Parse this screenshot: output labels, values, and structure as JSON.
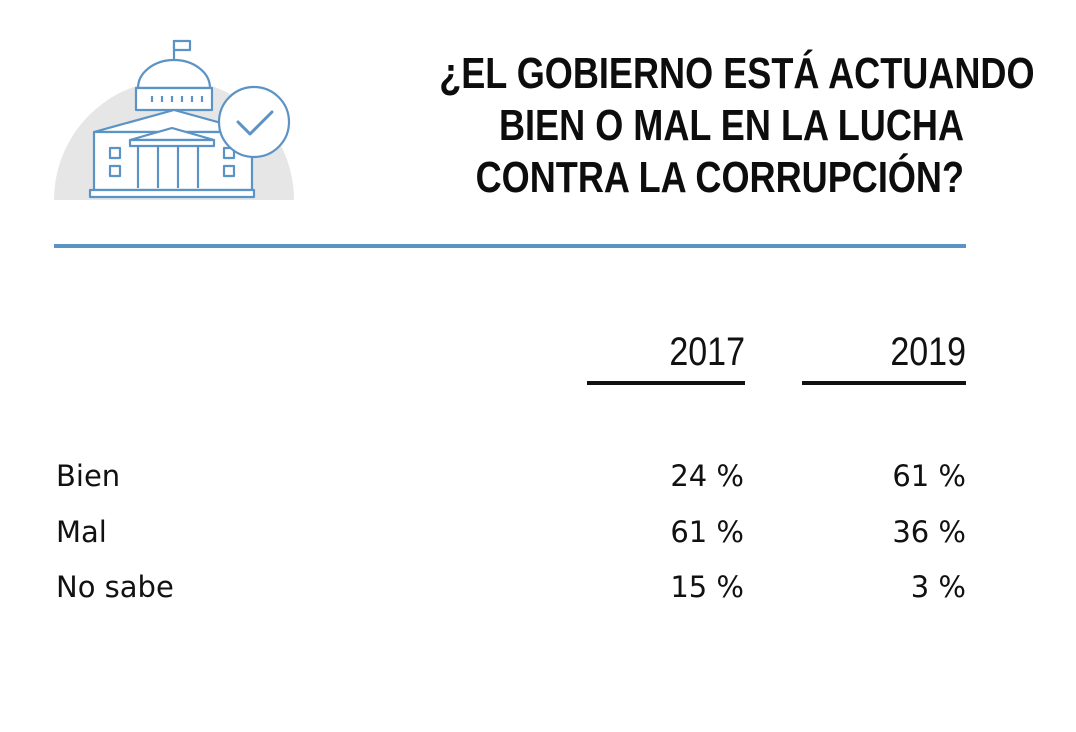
{
  "title_lines": [
    "¿EL GOBIERNO ESTÁ ACTUANDO",
    "BIEN O MAL EN LA LUCHA",
    "CONTRA LA CORRUPCIÓN?"
  ],
  "icon": "government-building-check-icon",
  "colors": {
    "accent": "#5b93c4",
    "icon_background": "#e6e6e6",
    "text": "#111111"
  },
  "chart_data": {
    "type": "table",
    "title": "¿EL GOBIERNO ESTÁ ACTUANDO BIEN O MAL EN LA LUCHA CONTRA LA CORRUPCIÓN?",
    "columns": [
      "2017",
      "2019"
    ],
    "rows": [
      {
        "label": "Bien",
        "values": [
          "24 %",
          "61 %"
        ]
      },
      {
        "label": "Mal",
        "values": [
          "61 %",
          "36 %"
        ]
      },
      {
        "label": "No sabe",
        "values": [
          "15 %",
          "3 %"
        ]
      }
    ],
    "numeric": {
      "2017": {
        "Bien": 24,
        "Mal": 61,
        "No sabe": 15
      },
      "2019": {
        "Bien": 61,
        "Mal": 36,
        "No sabe": 3
      }
    }
  }
}
